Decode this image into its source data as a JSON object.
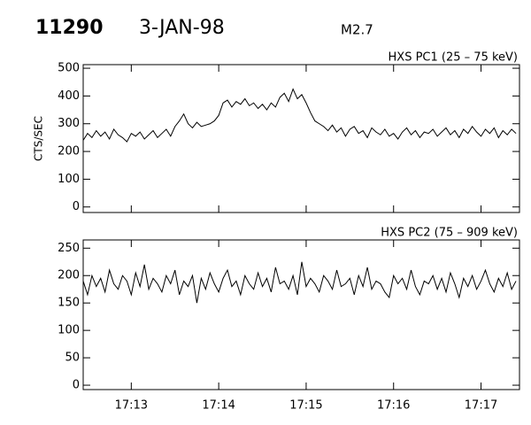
{
  "header": {
    "event": "11290",
    "date": "3-JAN-98",
    "class": "M2.7"
  },
  "chart_data": [
    {
      "type": "line",
      "title": "HXS PC1 (25 – 75 keV)",
      "y_label": "CTS/SEC",
      "color": "#000000",
      "xlim": [
        12.45,
        17.44
      ],
      "xticks": [
        13,
        14,
        15,
        16,
        17
      ],
      "ylim": [
        -20,
        513
      ],
      "yticks": [
        0,
        100,
        200,
        300,
        400,
        500
      ],
      "series": [
        {
          "name": "HXS PC1",
          "color": "#000000",
          "x": [
            12.45,
            12.5,
            12.55,
            12.6,
            12.65,
            12.7,
            12.75,
            12.8,
            12.85,
            12.9,
            12.95,
            13,
            13.05,
            13.1,
            13.15,
            13.2,
            13.25,
            13.3,
            13.35,
            13.4,
            13.45,
            13.5,
            13.55,
            13.6,
            13.65,
            13.7,
            13.75,
            13.8,
            13.85,
            13.9,
            13.95,
            14,
            14.05,
            14.1,
            14.15,
            14.2,
            14.25,
            14.3,
            14.35,
            14.4,
            14.45,
            14.5,
            14.55,
            14.6,
            14.65,
            14.7,
            14.75,
            14.8,
            14.85,
            14.9,
            14.95,
            15,
            15.05,
            15.1,
            15.15,
            15.2,
            15.25,
            15.3,
            15.35,
            15.4,
            15.45,
            15.5,
            15.55,
            15.6,
            15.65,
            15.7,
            15.75,
            15.8,
            15.85,
            15.9,
            15.95,
            16,
            16.05,
            16.1,
            16.15,
            16.2,
            16.25,
            16.3,
            16.35,
            16.4,
            16.45,
            16.5,
            16.55,
            16.6,
            16.65,
            16.7,
            16.75,
            16.8,
            16.85,
            16.9,
            16.95,
            17,
            17.05,
            17.1,
            17.15,
            17.2,
            17.25,
            17.3,
            17.35,
            17.4
          ],
          "values": [
            240,
            265,
            250,
            275,
            255,
            270,
            245,
            280,
            260,
            250,
            235,
            265,
            255,
            270,
            245,
            260,
            275,
            250,
            265,
            280,
            255,
            290,
            310,
            335,
            300,
            285,
            305,
            290,
            295,
            300,
            310,
            330,
            375,
            385,
            360,
            380,
            370,
            390,
            365,
            375,
            355,
            370,
            350,
            375,
            360,
            395,
            410,
            380,
            425,
            390,
            405,
            375,
            340,
            310,
            300,
            290,
            275,
            295,
            270,
            285,
            255,
            280,
            290,
            265,
            275,
            250,
            285,
            270,
            260,
            280,
            255,
            265,
            245,
            270,
            285,
            260,
            275,
            250,
            270,
            265,
            280,
            255,
            270,
            285,
            260,
            275,
            250,
            280,
            265,
            290,
            270,
            255,
            280,
            265,
            285,
            250,
            275,
            260,
            280,
            265
          ]
        }
      ]
    },
    {
      "type": "line",
      "title": "HXS PC2 (75 – 909 keV)",
      "color": "#000000",
      "xlim": [
        12.45,
        17.44
      ],
      "xticks": [
        {
          "value": 13,
          "label": "17:13"
        },
        {
          "value": 14,
          "label": "17:14"
        },
        {
          "value": 15,
          "label": "17:15"
        },
        {
          "value": 16,
          "label": "17:16"
        },
        {
          "value": 17,
          "label": "17:17"
        }
      ],
      "ylim": [
        -8,
        265
      ],
      "yticks": [
        0,
        50,
        100,
        150,
        200,
        250
      ],
      "series": [
        {
          "name": "HXS PC2",
          "color": "#000000",
          "x": [
            12.45,
            12.5,
            12.55,
            12.6,
            12.65,
            12.7,
            12.75,
            12.8,
            12.85,
            12.9,
            12.95,
            13,
            13.05,
            13.1,
            13.15,
            13.2,
            13.25,
            13.3,
            13.35,
            13.4,
            13.45,
            13.5,
            13.55,
            13.6,
            13.65,
            13.7,
            13.75,
            13.8,
            13.85,
            13.9,
            13.95,
            14,
            14.05,
            14.1,
            14.15,
            14.2,
            14.25,
            14.3,
            14.35,
            14.4,
            14.45,
            14.5,
            14.55,
            14.6,
            14.65,
            14.7,
            14.75,
            14.8,
            14.85,
            14.9,
            14.95,
            15,
            15.05,
            15.1,
            15.15,
            15.2,
            15.25,
            15.3,
            15.35,
            15.4,
            15.45,
            15.5,
            15.55,
            15.6,
            15.65,
            15.7,
            15.75,
            15.8,
            15.85,
            15.9,
            15.95,
            16,
            16.05,
            16.1,
            16.15,
            16.2,
            16.25,
            16.3,
            16.35,
            16.4,
            16.45,
            16.5,
            16.55,
            16.6,
            16.65,
            16.7,
            16.75,
            16.8,
            16.85,
            16.9,
            16.95,
            17,
            17.05,
            17.1,
            17.15,
            17.2,
            17.25,
            17.3,
            17.35,
            17.4
          ],
          "values": [
            190,
            165,
            200,
            180,
            195,
            170,
            210,
            185,
            175,
            200,
            190,
            165,
            205,
            180,
            220,
            175,
            195,
            185,
            170,
            200,
            185,
            210,
            165,
            190,
            180,
            200,
            150,
            195,
            175,
            205,
            185,
            170,
            195,
            210,
            180,
            190,
            165,
            200,
            185,
            175,
            205,
            180,
            195,
            170,
            215,
            185,
            190,
            175,
            200,
            165,
            225,
            180,
            195,
            185,
            170,
            200,
            190,
            175,
            210,
            180,
            185,
            195,
            165,
            200,
            180,
            215,
            175,
            190,
            185,
            170,
            160,
            200,
            185,
            195,
            175,
            210,
            180,
            165,
            190,
            185,
            200,
            175,
            195,
            170,
            205,
            185,
            160,
            195,
            180,
            200,
            175,
            190,
            210,
            185,
            170,
            195,
            180,
            205,
            175,
            190
          ]
        }
      ]
    }
  ]
}
